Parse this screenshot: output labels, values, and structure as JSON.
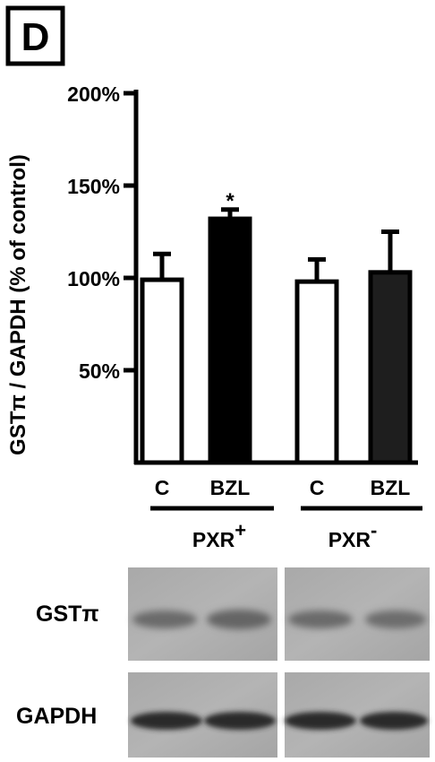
{
  "panel_label": "D",
  "chart_data": {
    "type": "bar",
    "ylabel": "GSTπ / GAPDH (% of control)",
    "yticks": [
      "50%",
      "100%",
      "150%",
      "200%"
    ],
    "ytick_values": [
      50,
      100,
      150,
      200
    ],
    "ylim": [
      0,
      200
    ],
    "categories": [
      "C",
      "BZL",
      "C",
      "BZL"
    ],
    "values": [
      99,
      132,
      98,
      103
    ],
    "errors": [
      14,
      5,
      12,
      22
    ],
    "bar_fills": [
      "#ffffff",
      "#000000",
      "#ffffff",
      "#1e1e1e"
    ],
    "significance": [
      "",
      "*",
      "",
      ""
    ],
    "groups": [
      {
        "name": "PXR",
        "superscript": "+",
        "span": [
          0,
          1
        ]
      },
      {
        "name": "PXR",
        "superscript": "-",
        "span": [
          2,
          3
        ]
      }
    ]
  },
  "blot": {
    "rows": [
      {
        "label": "GSTπ"
      },
      {
        "label": "GAPDH"
      }
    ]
  }
}
